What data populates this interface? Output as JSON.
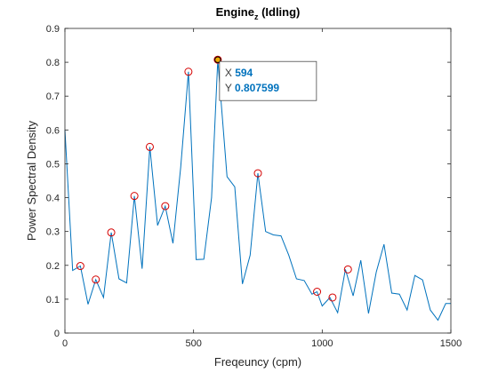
{
  "chart_data": {
    "type": "line",
    "title": "Engine",
    "title_subscript": "z",
    "title_suffix": " (Idling)",
    "xlabel": "Freqeuncy (cpm)",
    "ylabel": "Power Spectral Density",
    "xlim": [
      0,
      1500
    ],
    "ylim": [
      0,
      0.9
    ],
    "xticks": [
      0,
      500,
      1000,
      1500
    ],
    "xtick_labels": [
      "0",
      "500",
      "1000",
      "1500"
    ],
    "yticks": [
      0,
      0.1,
      0.2,
      0.3,
      0.4,
      0.5,
      0.6,
      0.7,
      0.8,
      0.9
    ],
    "ytick_labels": [
      "0",
      "0.1",
      "0.2",
      "0.3",
      "0.4",
      "0.5",
      "0.6",
      "0.7",
      "0.8",
      "0.9"
    ],
    "grid": false,
    "colors": {
      "line": "#0072BD",
      "peak_marker": "#D40000",
      "axes": "#262626",
      "datatip_value": "#0072BD"
    },
    "series": [
      {
        "x": [
          0,
          30,
          60,
          90,
          120,
          150,
          180,
          210,
          240,
          270,
          300,
          330,
          360,
          390,
          420,
          450,
          480,
          510,
          540,
          570,
          594,
          630,
          660,
          690,
          720,
          750,
          780,
          810,
          840,
          870,
          900,
          930,
          960,
          980,
          1000,
          1030,
          1060,
          1090,
          1120,
          1150,
          1180,
          1210,
          1240,
          1270,
          1300,
          1330,
          1360,
          1390,
          1420,
          1450,
          1480,
          1500
        ],
        "y": [
          0.6,
          0.185,
          0.198,
          0.085,
          0.158,
          0.105,
          0.297,
          0.16,
          0.148,
          0.405,
          0.19,
          0.55,
          0.318,
          0.375,
          0.265,
          0.49,
          0.772,
          0.217,
          0.218,
          0.4,
          0.807599,
          0.462,
          0.432,
          0.145,
          0.23,
          0.472,
          0.3,
          0.29,
          0.287,
          0.23,
          0.16,
          0.155,
          0.115,
          0.122,
          0.08,
          0.105,
          0.06,
          0.188,
          0.11,
          0.215,
          0.058,
          0.18,
          0.262,
          0.118,
          0.115,
          0.068,
          0.17,
          0.157,
          0.068,
          0.038,
          0.087,
          0.087
        ]
      }
    ],
    "peaks": {
      "x": [
        60,
        120,
        180,
        270,
        330,
        390,
        480,
        594,
        750,
        980,
        1040,
        1100
      ],
      "y": [
        0.198,
        0.158,
        0.297,
        0.405,
        0.55,
        0.375,
        0.772,
        0.807599,
        0.472,
        0.122,
        0.105,
        0.188
      ]
    },
    "datatip": {
      "x": 594,
      "y": 0.807599,
      "x_name": "X",
      "x_value": "594",
      "y_name": "Y",
      "y_value": "0.807599"
    }
  }
}
